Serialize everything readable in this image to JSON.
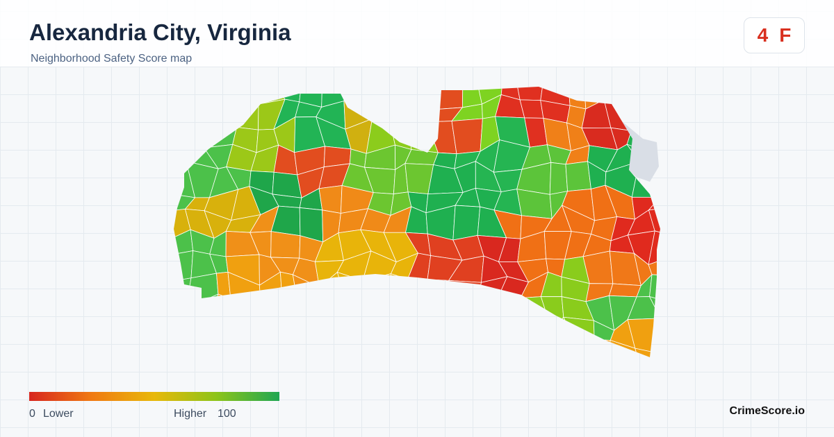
{
  "header": {
    "title": "Alexandria City, Virginia",
    "subtitle": "Neighborhood Safety Score map"
  },
  "score": {
    "value": 4,
    "grade": "F"
  },
  "legend": {
    "min": 0,
    "min_label": "Lower",
    "max_label": "Higher",
    "max": 100
  },
  "brand": "CrimeScore.io"
}
